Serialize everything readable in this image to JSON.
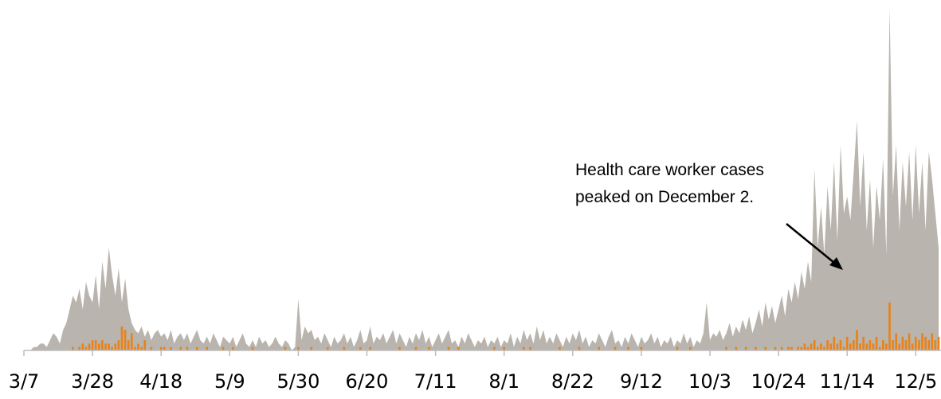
{
  "chart_data": {
    "type": "area_bar",
    "annotation": [
      "Health care worker cases",
      "peaked on December 2."
    ],
    "categories": [
      "3/7",
      null,
      null,
      null,
      null,
      null,
      null,
      null,
      null,
      null,
      null,
      null,
      null,
      null,
      null,
      null,
      null,
      null,
      null,
      null,
      null,
      "3/28",
      null,
      null,
      null,
      null,
      null,
      null,
      null,
      null,
      null,
      null,
      null,
      null,
      null,
      null,
      null,
      null,
      null,
      null,
      null,
      null,
      "4/18",
      null,
      null,
      null,
      null,
      null,
      null,
      null,
      null,
      null,
      null,
      null,
      null,
      null,
      null,
      null,
      null,
      null,
      null,
      null,
      null,
      "5/9",
      null,
      null,
      null,
      null,
      null,
      null,
      null,
      null,
      null,
      null,
      null,
      null,
      null,
      null,
      null,
      null,
      null,
      null,
      null,
      null,
      "5/30",
      null,
      null,
      null,
      null,
      null,
      null,
      null,
      null,
      null,
      null,
      null,
      null,
      null,
      null,
      null,
      null,
      null,
      null,
      null,
      null,
      "6/20",
      null,
      null,
      null,
      null,
      null,
      null,
      null,
      null,
      null,
      null,
      null,
      null,
      null,
      null,
      null,
      null,
      null,
      null,
      null,
      null,
      "7/11",
      null,
      null,
      null,
      null,
      null,
      null,
      null,
      null,
      null,
      null,
      null,
      null,
      null,
      null,
      null,
      null,
      null,
      null,
      null,
      null,
      "8/1",
      null,
      null,
      null,
      null,
      null,
      null,
      null,
      null,
      null,
      null,
      null,
      null,
      null,
      null,
      null,
      null,
      null,
      null,
      null,
      null,
      "8/22",
      null,
      null,
      null,
      null,
      null,
      null,
      null,
      null,
      null,
      null,
      null,
      null,
      null,
      null,
      null,
      null,
      null,
      null,
      null,
      null,
      "9/12",
      null,
      null,
      null,
      null,
      null,
      null,
      null,
      null,
      null,
      null,
      null,
      null,
      null,
      null,
      null,
      null,
      null,
      null,
      null,
      null,
      "10/3",
      null,
      null,
      null,
      null,
      null,
      null,
      null,
      null,
      null,
      null,
      null,
      null,
      null,
      null,
      null,
      null,
      null,
      null,
      null,
      null,
      "10/24",
      null,
      null,
      null,
      null,
      null,
      null,
      null,
      null,
      null,
      null,
      null,
      null,
      null,
      null,
      null,
      null,
      null,
      null,
      null,
      null,
      "11/14",
      null,
      null,
      null,
      null,
      null,
      null,
      null,
      null,
      null,
      null,
      null,
      null,
      null,
      null,
      null,
      null,
      null,
      null,
      null,
      null,
      "12/5",
      null,
      null,
      null,
      null,
      null,
      null,
      null
    ],
    "series": [
      {
        "kind": "area",
        "color": "#b9b4ad",
        "values": [
          0,
          0,
          0,
          1,
          1,
          2,
          2,
          1,
          3,
          5,
          4,
          2,
          6,
          8,
          12,
          16,
          14,
          18,
          12,
          20,
          16,
          14,
          22,
          12,
          26,
          18,
          30,
          22,
          16,
          24,
          14,
          21,
          12,
          8,
          6,
          5,
          7,
          4,
          6,
          3,
          5,
          6,
          4,
          5,
          3,
          6,
          2,
          4,
          5,
          3,
          5,
          2,
          4,
          6,
          3,
          2,
          4,
          2,
          5,
          3,
          1,
          4,
          3,
          2,
          4,
          1,
          3,
          5,
          2,
          1,
          3,
          1,
          4,
          2,
          3,
          1,
          2,
          4,
          2,
          1,
          3,
          2,
          0,
          1,
          15,
          3,
          7,
          5,
          6,
          3,
          4,
          2,
          5,
          3,
          1,
          4,
          2,
          3,
          5,
          2,
          4,
          1,
          3,
          6,
          2,
          3,
          7,
          2,
          4,
          3,
          5,
          2,
          4,
          6,
          2,
          5,
          3,
          1,
          4,
          2,
          5,
          3,
          6,
          2,
          4,
          1,
          3,
          5,
          2,
          4,
          6,
          2,
          3,
          1,
          4,
          2,
          5,
          3,
          1,
          3,
          2,
          4,
          1,
          3,
          2,
          4,
          1,
          3,
          2,
          5,
          1,
          4,
          2,
          6,
          3,
          5,
          2,
          7,
          3,
          6,
          2,
          4,
          2,
          5,
          3,
          1,
          4,
          2,
          5,
          3,
          6,
          2,
          4,
          1,
          3,
          2,
          5,
          3,
          1,
          4,
          6,
          2,
          3,
          1,
          4,
          2,
          5,
          3,
          1,
          4,
          2,
          3,
          5,
          2,
          4,
          1,
          3,
          2,
          4,
          1,
          3,
          2,
          5,
          2,
          4,
          1,
          3,
          2,
          5,
          14,
          3,
          5,
          4,
          6,
          3,
          5,
          8,
          4,
          7,
          5,
          9,
          6,
          10,
          5,
          8,
          12,
          7,
          14,
          9,
          13,
          8,
          12,
          16,
          10,
          18,
          14,
          20,
          15,
          23,
          18,
          26,
          20,
          53,
          30,
          42,
          28,
          48,
          35,
          55,
          32,
          60,
          40,
          45,
          38,
          52,
          67,
          42,
          58,
          35,
          50,
          30,
          48,
          38,
          56,
          28,
          100,
          45,
          60,
          35,
          55,
          42,
          58,
          38,
          60,
          40,
          55,
          35,
          58,
          50,
          40,
          30
        ]
      },
      {
        "kind": "bar",
        "color": "#e8821a",
        "values": [
          0,
          0,
          0,
          0,
          0,
          0,
          0,
          0,
          0,
          0,
          0,
          0,
          0,
          0,
          0,
          1,
          0,
          1,
          2,
          1,
          2,
          3,
          3,
          2,
          3,
          2,
          2,
          1,
          2,
          3,
          7,
          6,
          3,
          5,
          1,
          2,
          1,
          3,
          0,
          1,
          0,
          0,
          1,
          1,
          0,
          1,
          0,
          0,
          1,
          0,
          1,
          0,
          0,
          1,
          0,
          0,
          1,
          0,
          0,
          0,
          0,
          1,
          0,
          0,
          1,
          0,
          0,
          0,
          0,
          0,
          1,
          0,
          0,
          0,
          0,
          0,
          0,
          0,
          0,
          0,
          1,
          0,
          0,
          0,
          1,
          0,
          0,
          0,
          1,
          0,
          0,
          0,
          0,
          1,
          0,
          0,
          0,
          0,
          1,
          0,
          0,
          0,
          0,
          1,
          0,
          0,
          1,
          0,
          0,
          0,
          0,
          0,
          0,
          0,
          0,
          1,
          0,
          0,
          0,
          0,
          1,
          0,
          0,
          0,
          1,
          0,
          0,
          0,
          0,
          0,
          1,
          0,
          0,
          1,
          0,
          0,
          0,
          0,
          0,
          0,
          0,
          0,
          0,
          0,
          1,
          0,
          0,
          1,
          0,
          0,
          0,
          0,
          0,
          1,
          0,
          1,
          0,
          0,
          0,
          0,
          0,
          0,
          0,
          0,
          1,
          0,
          0,
          0,
          0,
          0,
          1,
          0,
          0,
          0,
          0,
          0,
          1,
          0,
          0,
          0,
          0,
          1,
          0,
          0,
          0,
          1,
          0,
          0,
          0,
          1,
          0,
          0,
          0,
          0,
          0,
          0,
          0,
          0,
          0,
          0,
          1,
          0,
          0,
          0,
          1,
          0,
          0,
          0,
          0,
          0,
          0,
          0,
          0,
          0,
          0,
          1,
          0,
          0,
          1,
          0,
          0,
          1,
          0,
          0,
          1,
          0,
          0,
          1,
          0,
          0,
          1,
          0,
          1,
          0,
          1,
          1,
          0,
          1,
          1,
          2,
          1,
          2,
          3,
          1,
          2,
          1,
          3,
          2,
          4,
          2,
          3,
          1,
          4,
          2,
          3,
          6,
          2,
          4,
          2,
          3,
          2,
          4,
          1,
          3,
          2,
          14,
          3,
          5,
          2,
          4,
          3,
          5,
          2,
          4,
          3,
          5,
          4,
          3,
          5,
          3,
          4
        ]
      }
    ],
    "ylim": [
      0,
      100
    ]
  }
}
